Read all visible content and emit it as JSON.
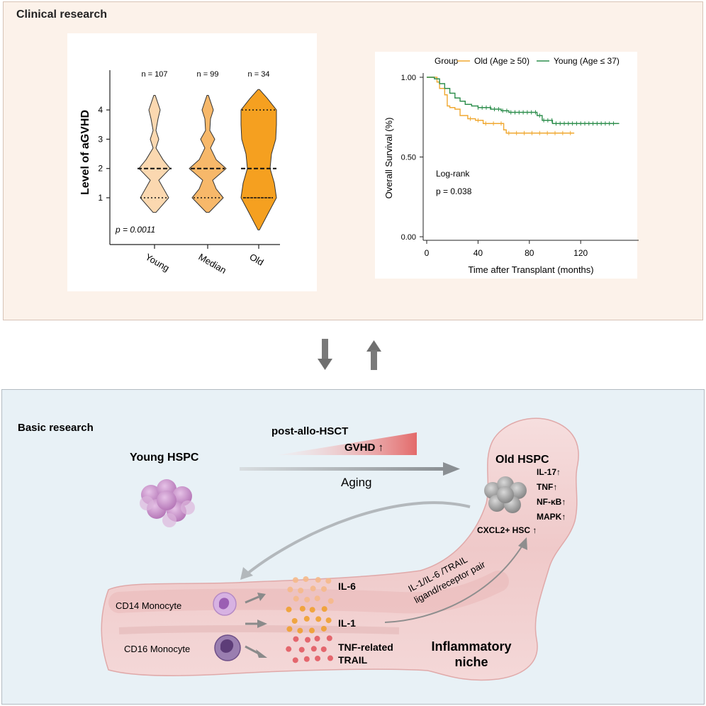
{
  "clinical": {
    "title": "Clinical research"
  },
  "basic": {
    "title": "Basic research",
    "young_hspc": "Young HSPC",
    "post_allo": "post-allo-HSCT",
    "gvhd": "GVHD ↑",
    "aging": "Aging",
    "old_hspc": "Old HSPC",
    "old_markers": [
      "IL-17↑",
      "TNF↑",
      "NF-κB↑",
      "MAPK↑"
    ],
    "cxcl2": "CXCL2+  HSC ↑",
    "ligand_line1": "IL-1/IL-6 /TRAIL",
    "ligand_line2": "ligand/receptor pair",
    "cd14": "CD14 Monocyte",
    "cd16": "CD16 Monocyte",
    "il6": "IL-6",
    "il1": "IL-1",
    "trail_line1": "TNF-related",
    "trail_line2": "TRAIL",
    "niche_line1": "Inflammatory",
    "niche_line2": "niche",
    "colors": {
      "young": "#c98bc8",
      "old": "#9a9a9a",
      "gvhd": "#e06a6a"
    }
  },
  "chart_data": [
    {
      "type": "violin",
      "categories": [
        "Young",
        "Median",
        "Old"
      ],
      "counts": [
        "n = 107",
        "n = 99",
        "n = 34"
      ],
      "ylabel": "Level of aGVHD",
      "yticks": [
        1,
        2,
        3,
        4
      ],
      "medians": [
        2,
        2,
        2
      ],
      "quartiles": [
        [
          1,
          2
        ],
        [
          1,
          2
        ],
        [
          1,
          4
        ]
      ],
      "ranges": [
        [
          0.5,
          4.5
        ],
        [
          0.5,
          4.5
        ],
        [
          -0.1,
          4.7
        ]
      ],
      "annotation": "p = 0.0011",
      "colors": [
        "#fbd8b0",
        "#f7b86a",
        "#f5a020"
      ]
    },
    {
      "type": "line",
      "legend_title": "Group",
      "series": [
        {
          "name": "Old (Age ≥ 50)",
          "color": "#f0a830",
          "points": [
            [
              0,
              1.0
            ],
            [
              5,
              1.0
            ],
            [
              8,
              0.97
            ],
            [
              10,
              0.93
            ],
            [
              14,
              0.89
            ],
            [
              16,
              0.82
            ],
            [
              18,
              0.81
            ],
            [
              22,
              0.8
            ],
            [
              26,
              0.76
            ],
            [
              32,
              0.74
            ],
            [
              38,
              0.73
            ],
            [
              44,
              0.71
            ],
            [
              50,
              0.71
            ],
            [
              56,
              0.71
            ],
            [
              60,
              0.67
            ],
            [
              62,
              0.65
            ],
            [
              80,
              0.65
            ],
            [
              100,
              0.65
            ],
            [
              115,
              0.65
            ]
          ]
        },
        {
          "name": "Young (Age ≤ 37)",
          "color": "#2f8f4e",
          "points": [
            [
              0,
              1.0
            ],
            [
              6,
              0.99
            ],
            [
              10,
              0.96
            ],
            [
              14,
              0.93
            ],
            [
              18,
              0.9
            ],
            [
              22,
              0.87
            ],
            [
              26,
              0.85
            ],
            [
              30,
              0.83
            ],
            [
              35,
              0.82
            ],
            [
              40,
              0.81
            ],
            [
              50,
              0.8
            ],
            [
              58,
              0.79
            ],
            [
              64,
              0.78
            ],
            [
              84,
              0.78
            ],
            [
              86,
              0.76
            ],
            [
              90,
              0.73
            ],
            [
              98,
              0.71
            ],
            [
              150,
              0.71
            ]
          ]
        }
      ],
      "xlabel": "Time after Transplant (months)",
      "ylabel": "Overall Survival (%)",
      "xticks": [
        0,
        40,
        80,
        120
      ],
      "yticks": [
        "0.00",
        "0.50",
        "1.00"
      ],
      "xlim": [
        -5,
        155
      ],
      "ylim": [
        0,
        1
      ],
      "annotation_line1": "Log-rank",
      "annotation_line2": "p = 0.038"
    }
  ]
}
